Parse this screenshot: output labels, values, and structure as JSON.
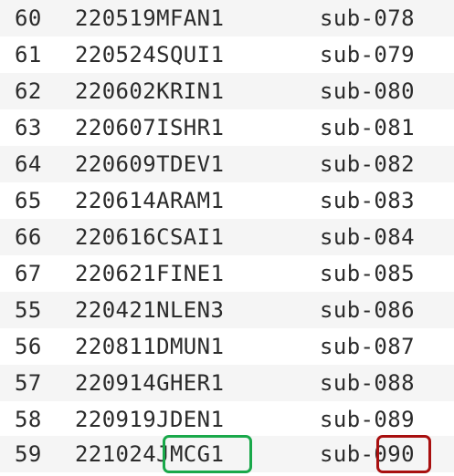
{
  "rows": [
    {
      "index": "60",
      "code": "220519MFAN1",
      "sub": "sub-078"
    },
    {
      "index": "61",
      "code": "220524SQUI1",
      "sub": "sub-079"
    },
    {
      "index": "62",
      "code": "220602KRIN1",
      "sub": "sub-080"
    },
    {
      "index": "63",
      "code": "220607ISHR1",
      "sub": "sub-081"
    },
    {
      "index": "64",
      "code": "220609TDEV1",
      "sub": "sub-082"
    },
    {
      "index": "65",
      "code": "220614ARAM1",
      "sub": "sub-083"
    },
    {
      "index": "66",
      "code": "220616CSAI1",
      "sub": "sub-084"
    },
    {
      "index": "67",
      "code": "220621FINE1",
      "sub": "sub-085"
    },
    {
      "index": "55",
      "code": "220421NLEN3",
      "sub": "sub-086"
    },
    {
      "index": "56",
      "code": "220811DMUN1",
      "sub": "sub-087"
    },
    {
      "index": "57",
      "code": "220914GHER1",
      "sub": "sub-088"
    },
    {
      "index": "58",
      "code": "220919JDEN1",
      "sub": "sub-089"
    },
    {
      "index": "59",
      "code": "221024JMCG1",
      "sub": "sub-090"
    }
  ],
  "highlights": {
    "code_color": "#19a84a",
    "sub_color": "#a80f0f"
  }
}
